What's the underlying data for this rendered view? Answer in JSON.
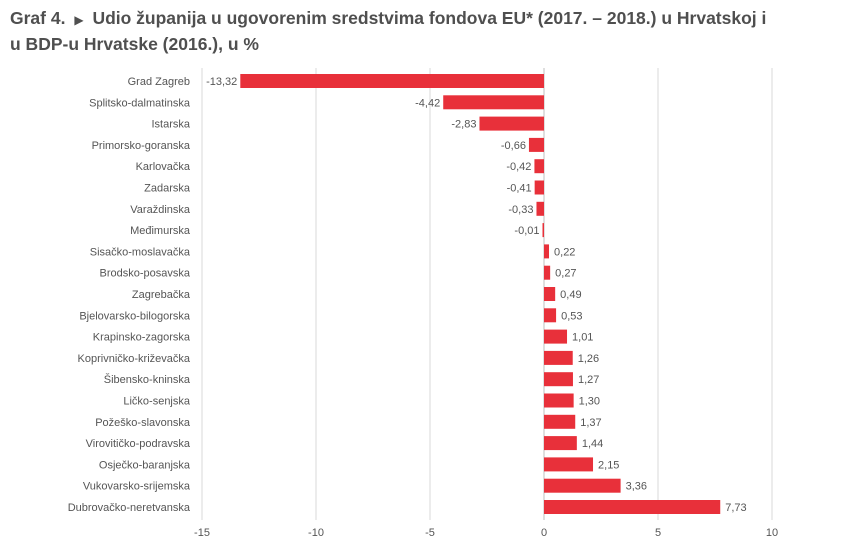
{
  "figure": {
    "label": "Graf 4.",
    "marker": "▶",
    "title_line1": "Udio županija u ugovorenim sredstvima fondova EU* (2017. – 2018.) u Hrvatskoj i",
    "title_line2": "u BDP-u Hrvatske (2016.), u %"
  },
  "chart_data": {
    "type": "bar",
    "orientation": "horizontal",
    "title": "Udio županija u ugovorenim sredstvima fondova EU* (2017. – 2018.) u Hrvatskoj i u BDP-u Hrvatske (2016.), u %",
    "categories": [
      "Grad Zagreb",
      "Splitsko-dalmatinska",
      "Istarska",
      "Primorsko-goranska",
      "Karlovačka",
      "Zadarska",
      "Varaždinska",
      "Međimurska",
      "Sisačko-moslavačka",
      "Brodsko-posavska",
      "Zagrebačka",
      "Bjelovarsko-bilogorska",
      "Krapinsko-zagorska",
      "Koprivničko-križevačka",
      "Šibensko-kninska",
      "Ličko-senjska",
      "Požeško-slavonska",
      "Virovitičko-podravska",
      "Osječko-baranjska",
      "Vukovarsko-srijemska",
      "Dubrovačko-neretvanska"
    ],
    "values": [
      -13.32,
      -4.42,
      -2.83,
      -0.66,
      -0.42,
      -0.41,
      -0.33,
      -0.01,
      0.22,
      0.27,
      0.49,
      0.53,
      1.01,
      1.26,
      1.27,
      1.3,
      1.37,
      1.44,
      2.15,
      3.36,
      7.73
    ],
    "value_labels": [
      "-13,32",
      "-4,42",
      "-2,83",
      "-0,66",
      "-0,42",
      "-0,41",
      "-0,33",
      "-0,01",
      "0,22",
      "0,27",
      "0,49",
      "0,53",
      "1,01",
      "1,26",
      "1,27",
      "1,30",
      "1,37",
      "1,44",
      "2,15",
      "3,36",
      "7,73"
    ],
    "xlim": [
      -15,
      10
    ],
    "x_ticks": [
      -15,
      -10,
      -5,
      0,
      5,
      10
    ],
    "x_tick_labels": [
      "-15",
      "-10",
      "-5",
      "0",
      "5",
      "10"
    ],
    "grid": true,
    "bar_color": "#e8303a",
    "xlabel": "",
    "ylabel": ""
  }
}
